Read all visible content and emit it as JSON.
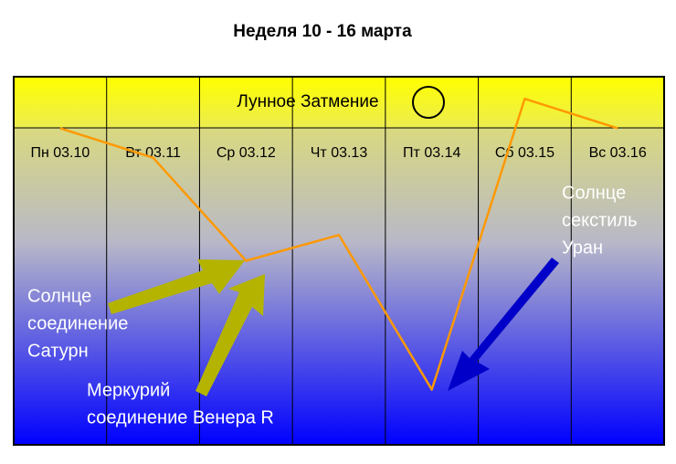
{
  "chart_data": {
    "type": "line",
    "title": "Неделя 10 - 16 марта",
    "event": "Лунное Затмение",
    "categories": [
      "Пн 03.10",
      "Вт 03.11",
      "Ср 03.12",
      "Чт 03.13",
      "Пт 03.14",
      "Сб 03.15",
      "Вс 03.16"
    ],
    "series": [
      {
        "color": "#ff9900",
        "values": [
          86,
          78,
          50,
          57,
          15,
          94,
          86
        ]
      }
    ],
    "ylim": [
      0,
      100
    ],
    "annotations": [
      {
        "lines": [
          "Солнце",
          "соединение",
          "Сатурн"
        ]
      },
      {
        "lines": [
          "Меркурий",
          "соединение Венера R"
        ]
      },
      {
        "lines": [
          "Солнце",
          "секстиль",
          "Уран"
        ]
      }
    ]
  }
}
